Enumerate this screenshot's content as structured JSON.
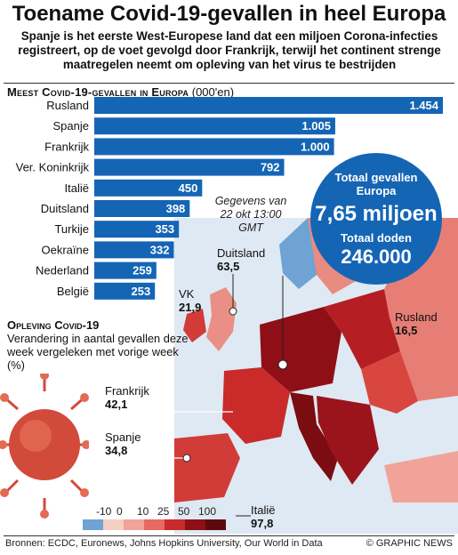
{
  "header": {
    "title": "Toename Covid-19-gevallen in heel Europa",
    "subtitle": "Spanje is het eerste West-Europese land dat een miljoen Corona-infecties registreert, op de voet gevolgd door Frankrijk, terwijl het continent strenge maatregelen neemt om opleving van het virus te bestrijden"
  },
  "chart_data": {
    "type": "bar",
    "title": "Meest Covid-19-gevallen in Europa",
    "unit": "(000'en)",
    "categories": [
      "Rusland",
      "Spanje",
      "Frankrijk",
      "Ver. Koninkrijk",
      "Italië",
      "Duitsland",
      "Turkije",
      "Oekraïne",
      "Nederland",
      "België"
    ],
    "values": [
      1454,
      1005,
      1000,
      792,
      450,
      398,
      353,
      332,
      259,
      253
    ],
    "value_labels": [
      "1.454",
      "1.005",
      "1.000",
      "792",
      "450",
      "398",
      "353",
      "332",
      "259",
      "253"
    ],
    "orientation": "horizontal",
    "bar_color": "#1565b5"
  },
  "note": "Gegevens van 22 okt 13:00 GMT",
  "totals": {
    "cases_label": "Totaal gevallen Europa",
    "cases_value": "7,65 miljoen",
    "deaths_label": "Totaal doden",
    "deaths_value": "246.000"
  },
  "surge": {
    "heading": "Opleving Covid-19",
    "description": "Verandering in aantal gevallen deze week vergeleken met vorige week (%)"
  },
  "map_callouts": [
    {
      "country": "Duitsland",
      "value": "63,5"
    },
    {
      "country": "VK",
      "value": "21,9"
    },
    {
      "country": "Rusland",
      "value": "16,5"
    },
    {
      "country": "Frankrijk",
      "value": "42,1"
    },
    {
      "country": "Spanje",
      "value": "34,8"
    },
    {
      "country": "Italië",
      "value": "97,8"
    }
  ],
  "legend": {
    "ticks": [
      "-10",
      "0",
      "10",
      "25",
      "50",
      "100"
    ],
    "colors": [
      "#6ea3d3",
      "#f3cfc4",
      "#f1a399",
      "#e56a63",
      "#c92a2a",
      "#8e0f16",
      "#5c0a10"
    ]
  },
  "footer": {
    "sources": "Bronnen: ECDC, Euronews, Johns Hopkins University, Our World in Data",
    "credit": "© GRAPHIC NEWS"
  }
}
